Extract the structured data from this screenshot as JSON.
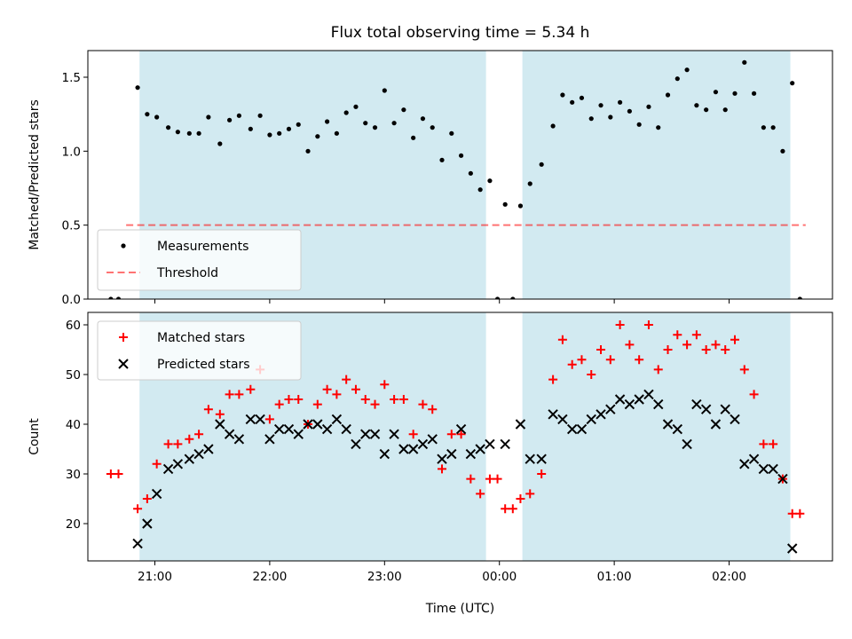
{
  "chart_data": [
    {
      "type": "scatter",
      "title": "Flux total observing time = 5.34 h",
      "xlabel": "",
      "ylabel": "Matched/Predicted stars",
      "ylim": [
        0,
        1.68
      ],
      "yticks": [
        0.0,
        0.5,
        1.0,
        1.5
      ],
      "ytick_labels": [
        "0.0",
        "0.5",
        "1.0",
        "1.5"
      ],
      "shaded_intervals": [
        [
          "20:52",
          "23:53"
        ],
        [
          "00:12",
          "02:32"
        ]
      ],
      "shade_color": "#add8e6",
      "legend_position": "lower-left",
      "series": [
        {
          "name": "Measurements",
          "marker": "dot",
          "color": "#000000",
          "points": [
            [
              "20:37",
              0.0
            ],
            [
              "20:41",
              0.0
            ],
            [
              "20:51",
              1.43
            ],
            [
              "20:56",
              1.25
            ],
            [
              "21:01",
              1.23
            ],
            [
              "21:07",
              1.16
            ],
            [
              "21:12",
              1.13
            ],
            [
              "21:18",
              1.12
            ],
            [
              "21:23",
              1.12
            ],
            [
              "21:28",
              1.23
            ],
            [
              "21:34",
              1.05
            ],
            [
              "21:39",
              1.21
            ],
            [
              "21:44",
              1.24
            ],
            [
              "21:50",
              1.15
            ],
            [
              "21:55",
              1.24
            ],
            [
              "22:00",
              1.11
            ],
            [
              "22:05",
              1.12
            ],
            [
              "22:10",
              1.15
            ],
            [
              "22:15",
              1.18
            ],
            [
              "22:20",
              1.0
            ],
            [
              "22:25",
              1.1
            ],
            [
              "22:30",
              1.2
            ],
            [
              "22:35",
              1.12
            ],
            [
              "22:40",
              1.26
            ],
            [
              "22:45",
              1.3
            ],
            [
              "22:50",
              1.19
            ],
            [
              "22:55",
              1.16
            ],
            [
              "23:00",
              1.41
            ],
            [
              "23:05",
              1.19
            ],
            [
              "23:10",
              1.28
            ],
            [
              "23:15",
              1.09
            ],
            [
              "23:20",
              1.22
            ],
            [
              "23:25",
              1.16
            ],
            [
              "23:30",
              0.94
            ],
            [
              "23:35",
              1.12
            ],
            [
              "23:40",
              0.97
            ],
            [
              "23:45",
              0.85
            ],
            [
              "23:50",
              0.74
            ],
            [
              "23:55",
              0.8
            ],
            [
              "23:59",
              0.0
            ],
            [
              "00:03",
              0.64
            ],
            [
              "00:07",
              0.0
            ],
            [
              "00:11",
              0.63
            ],
            [
              "00:16",
              0.78
            ],
            [
              "00:22",
              0.91
            ],
            [
              "00:28",
              1.17
            ],
            [
              "00:33",
              1.38
            ],
            [
              "00:38",
              1.33
            ],
            [
              "00:43",
              1.36
            ],
            [
              "00:48",
              1.22
            ],
            [
              "00:53",
              1.31
            ],
            [
              "00:58",
              1.23
            ],
            [
              "01:03",
              1.33
            ],
            [
              "01:08",
              1.27
            ],
            [
              "01:13",
              1.18
            ],
            [
              "01:18",
              1.3
            ],
            [
              "01:23",
              1.16
            ],
            [
              "01:28",
              1.38
            ],
            [
              "01:33",
              1.49
            ],
            [
              "01:38",
              1.55
            ],
            [
              "01:43",
              1.31
            ],
            [
              "01:48",
              1.28
            ],
            [
              "01:53",
              1.4
            ],
            [
              "01:58",
              1.28
            ],
            [
              "02:03",
              1.39
            ],
            [
              "02:08",
              1.6
            ],
            [
              "02:13",
              1.39
            ],
            [
              "02:18",
              1.16
            ],
            [
              "02:23",
              1.16
            ],
            [
              "02:28",
              1.0
            ],
            [
              "02:33",
              1.46
            ],
            [
              "02:37",
              0.0
            ]
          ]
        },
        {
          "name": "Threshold",
          "line_style": "dashed",
          "color": "#ff0000",
          "points": [
            [
              "20:45",
              0.5
            ],
            [
              "02:40",
              0.5
            ]
          ]
        }
      ]
    },
    {
      "type": "scatter",
      "title": "",
      "xlabel": "Time (UTC)",
      "ylabel": "Count",
      "ylim": [
        12.5,
        62.5
      ],
      "yticks": [
        20,
        30,
        40,
        50,
        60
      ],
      "ytick_labels": [
        "20",
        "30",
        "40",
        "50",
        "60"
      ],
      "xtick_labels": [
        "21:00",
        "22:00",
        "23:00",
        "00:00",
        "01:00",
        "02:00"
      ],
      "shaded_intervals": [
        [
          "20:52",
          "23:53"
        ],
        [
          "00:12",
          "02:32"
        ]
      ],
      "shade_color": "#add8e6",
      "legend_position": "upper-left",
      "series": [
        {
          "name": "Matched stars",
          "marker": "plus",
          "color": "#ff0000",
          "points": [
            [
              "20:37",
              30
            ],
            [
              "20:41",
              30
            ],
            [
              "20:51",
              23
            ],
            [
              "20:56",
              25
            ],
            [
              "21:01",
              32
            ],
            [
              "21:07",
              36
            ],
            [
              "21:12",
              36
            ],
            [
              "21:18",
              37
            ],
            [
              "21:23",
              38
            ],
            [
              "21:28",
              43
            ],
            [
              "21:34",
              42
            ],
            [
              "21:39",
              46
            ],
            [
              "21:44",
              46
            ],
            [
              "21:50",
              47
            ],
            [
              "21:55",
              51
            ],
            [
              "22:00",
              41
            ],
            [
              "22:05",
              44
            ],
            [
              "22:10",
              45
            ],
            [
              "22:15",
              45
            ],
            [
              "22:20",
              40
            ],
            [
              "22:25",
              44
            ],
            [
              "22:30",
              47
            ],
            [
              "22:35",
              46
            ],
            [
              "22:40",
              49
            ],
            [
              "22:45",
              47
            ],
            [
              "22:50",
              45
            ],
            [
              "22:55",
              44
            ],
            [
              "23:00",
              48
            ],
            [
              "23:05",
              45
            ],
            [
              "23:10",
              45
            ],
            [
              "23:15",
              38
            ],
            [
              "23:20",
              44
            ],
            [
              "23:25",
              43
            ],
            [
              "23:30",
              31
            ],
            [
              "23:35",
              38
            ],
            [
              "23:40",
              38
            ],
            [
              "23:45",
              29
            ],
            [
              "23:50",
              26
            ],
            [
              "23:55",
              29
            ],
            [
              "23:59",
              29
            ],
            [
              "00:03",
              23
            ],
            [
              "00:07",
              23
            ],
            [
              "00:11",
              25
            ],
            [
              "00:16",
              26
            ],
            [
              "00:22",
              30
            ],
            [
              "00:28",
              49
            ],
            [
              "00:33",
              57
            ],
            [
              "00:38",
              52
            ],
            [
              "00:43",
              53
            ],
            [
              "00:48",
              50
            ],
            [
              "00:53",
              55
            ],
            [
              "00:58",
              53
            ],
            [
              "01:03",
              60
            ],
            [
              "01:08",
              56
            ],
            [
              "01:13",
              53
            ],
            [
              "01:18",
              60
            ],
            [
              "01:23",
              51
            ],
            [
              "01:28",
              55
            ],
            [
              "01:33",
              58
            ],
            [
              "01:38",
              56
            ],
            [
              "01:43",
              58
            ],
            [
              "01:48",
              55
            ],
            [
              "01:53",
              56
            ],
            [
              "01:58",
              55
            ],
            [
              "02:03",
              57
            ],
            [
              "02:08",
              51
            ],
            [
              "02:13",
              46
            ],
            [
              "02:18",
              36
            ],
            [
              "02:23",
              36
            ],
            [
              "02:28",
              29
            ],
            [
              "02:33",
              22
            ],
            [
              "02:37",
              22
            ]
          ]
        },
        {
          "name": "Predicted stars",
          "marker": "x",
          "color": "#000000",
          "points": [
            [
              "20:51",
              16
            ],
            [
              "20:56",
              20
            ],
            [
              "21:01",
              26
            ],
            [
              "21:07",
              31
            ],
            [
              "21:12",
              32
            ],
            [
              "21:18",
              33
            ],
            [
              "21:23",
              34
            ],
            [
              "21:28",
              35
            ],
            [
              "21:34",
              40
            ],
            [
              "21:39",
              38
            ],
            [
              "21:44",
              37
            ],
            [
              "21:50",
              41
            ],
            [
              "21:55",
              41
            ],
            [
              "22:00",
              37
            ],
            [
              "22:05",
              39
            ],
            [
              "22:10",
              39
            ],
            [
              "22:15",
              38
            ],
            [
              "22:20",
              40
            ],
            [
              "22:25",
              40
            ],
            [
              "22:30",
              39
            ],
            [
              "22:35",
              41
            ],
            [
              "22:40",
              39
            ],
            [
              "22:45",
              36
            ],
            [
              "22:50",
              38
            ],
            [
              "22:55",
              38
            ],
            [
              "23:00",
              34
            ],
            [
              "23:05",
              38
            ],
            [
              "23:10",
              35
            ],
            [
              "23:15",
              35
            ],
            [
              "23:20",
              36
            ],
            [
              "23:25",
              37
            ],
            [
              "23:30",
              33
            ],
            [
              "23:35",
              34
            ],
            [
              "23:40",
              39
            ],
            [
              "23:45",
              34
            ],
            [
              "23:50",
              35
            ],
            [
              "23:55",
              36
            ],
            [
              "00:03",
              36
            ],
            [
              "00:11",
              40
            ],
            [
              "00:16",
              33
            ],
            [
              "00:22",
              33
            ],
            [
              "00:28",
              42
            ],
            [
              "00:33",
              41
            ],
            [
              "00:38",
              39
            ],
            [
              "00:43",
              39
            ],
            [
              "00:48",
              41
            ],
            [
              "00:53",
              42
            ],
            [
              "00:58",
              43
            ],
            [
              "01:03",
              45
            ],
            [
              "01:08",
              44
            ],
            [
              "01:13",
              45
            ],
            [
              "01:18",
              46
            ],
            [
              "01:23",
              44
            ],
            [
              "01:28",
              40
            ],
            [
              "01:33",
              39
            ],
            [
              "01:38",
              36
            ],
            [
              "01:43",
              44
            ],
            [
              "01:48",
              43
            ],
            [
              "01:53",
              40
            ],
            [
              "01:58",
              43
            ],
            [
              "02:03",
              41
            ],
            [
              "02:08",
              32
            ],
            [
              "02:13",
              33
            ],
            [
              "02:18",
              31
            ],
            [
              "02:23",
              31
            ],
            [
              "02:28",
              29
            ],
            [
              "02:33",
              15
            ]
          ]
        }
      ]
    }
  ]
}
